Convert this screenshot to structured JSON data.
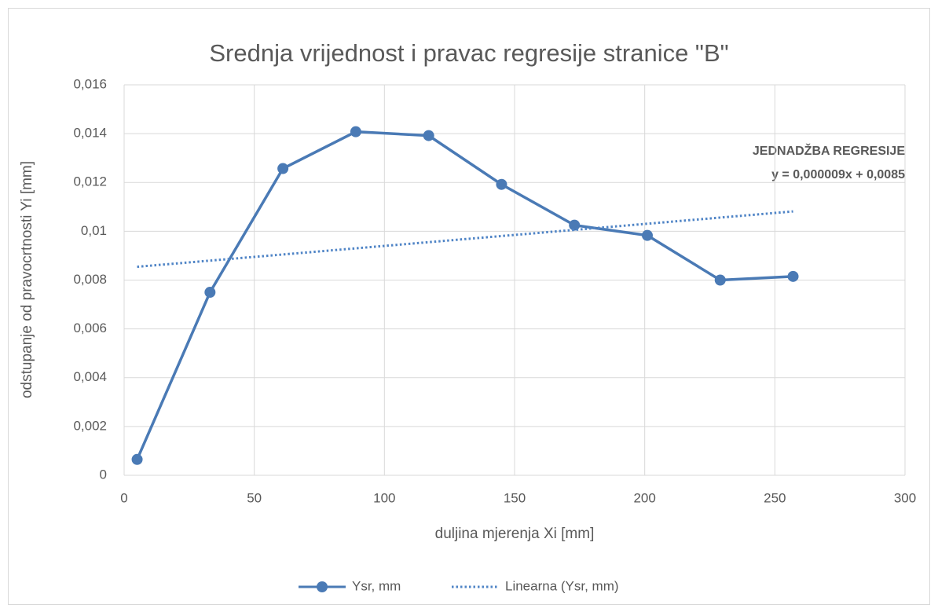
{
  "chart_data": {
    "type": "line",
    "title": "Srednja vrijednost i pravac regresije stranice \"B\"",
    "xlabel": "duljina mjerenja Xi [mm]",
    "ylabel": "odstupanje od pravocrtnosti Yi [mm]",
    "annotations": [
      "JEDNADŽBA REGRESIJE",
      "y = 0,000009x + 0,0085"
    ],
    "series": [
      {
        "name": "Ysr, mm",
        "color": "#4a7ab5",
        "markers": true,
        "dash": "solid",
        "x": [
          5,
          33,
          61,
          89,
          117,
          145,
          173,
          201,
          229,
          257
        ],
        "values": [
          0.00065,
          0.0075,
          0.01257,
          0.01408,
          0.01392,
          0.01192,
          0.01025,
          0.00983,
          0.008,
          0.00815
        ]
      },
      {
        "name": "Linearna (Ysr, mm)",
        "color": "#4f84c6",
        "markers": false,
        "dash": "dotted",
        "x": [
          5,
          257
        ],
        "values": [
          0.008545,
          0.010813
        ]
      }
    ],
    "xlim": [
      0,
      300
    ],
    "xticks": [
      0,
      50,
      100,
      150,
      200,
      250,
      300
    ],
    "ylim": [
      0,
      0.016
    ],
    "yticks": [
      0,
      {
        "value": 0.002,
        "label": "0,002"
      },
      {
        "value": 0.004,
        "label": "0,004"
      },
      {
        "value": 0.006,
        "label": "0,006"
      },
      {
        "value": 0.008,
        "label": "0,008"
      },
      {
        "value": 0.01,
        "label": "0,01"
      },
      {
        "value": 0.012,
        "label": "0,012"
      },
      {
        "value": 0.014,
        "label": "0,014"
      },
      {
        "value": 0.016,
        "label": "0,016"
      }
    ],
    "grid": true,
    "legend": "bottom"
  }
}
